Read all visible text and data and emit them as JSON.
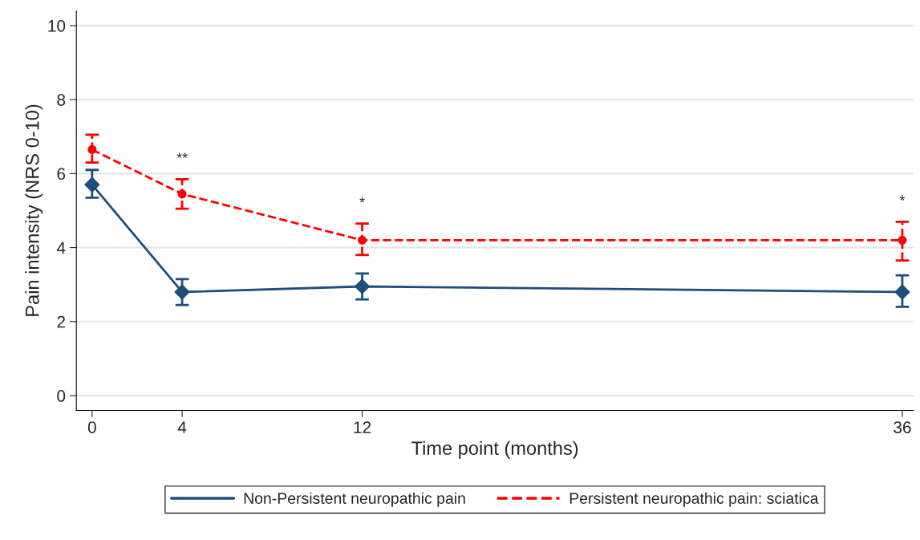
{
  "chart_data": {
    "type": "line",
    "xlabel": "Time point (months)",
    "ylabel": "Pain intensity (NRS 0-10)",
    "xlim": [
      -0.7,
      36.5
    ],
    "xticks": [
      0,
      4,
      12,
      36
    ],
    "ylim": [
      -0.4,
      10.4
    ],
    "yticks": [
      0,
      2,
      4,
      6,
      8,
      10
    ],
    "x": [
      0,
      4,
      12,
      36
    ],
    "series": [
      {
        "name": "Non-Persistent neuropathic pain",
        "color": "#1f4e79",
        "values": [
          5.7,
          2.8,
          2.95,
          2.8
        ],
        "errors": [
          [
            5.35,
            6.1
          ],
          [
            2.45,
            3.15
          ],
          [
            2.6,
            3.3
          ],
          [
            2.4,
            3.25
          ]
        ],
        "marker": "diamond",
        "line_style": "solid"
      },
      {
        "name": "Persistent neuropathic pain: sciatica",
        "color": "#ff0000",
        "values": [
          6.65,
          5.45,
          4.2,
          4.2
        ],
        "errors": [
          [
            6.3,
            7.05
          ],
          [
            5.05,
            5.85
          ],
          [
            3.8,
            4.65
          ],
          [
            3.65,
            4.7
          ]
        ],
        "marker": "circle",
        "line_style": "dashed"
      }
    ],
    "annotations": [
      "**",
      "*",
      "*"
    ],
    "grid": "y",
    "legend": "bottom"
  }
}
